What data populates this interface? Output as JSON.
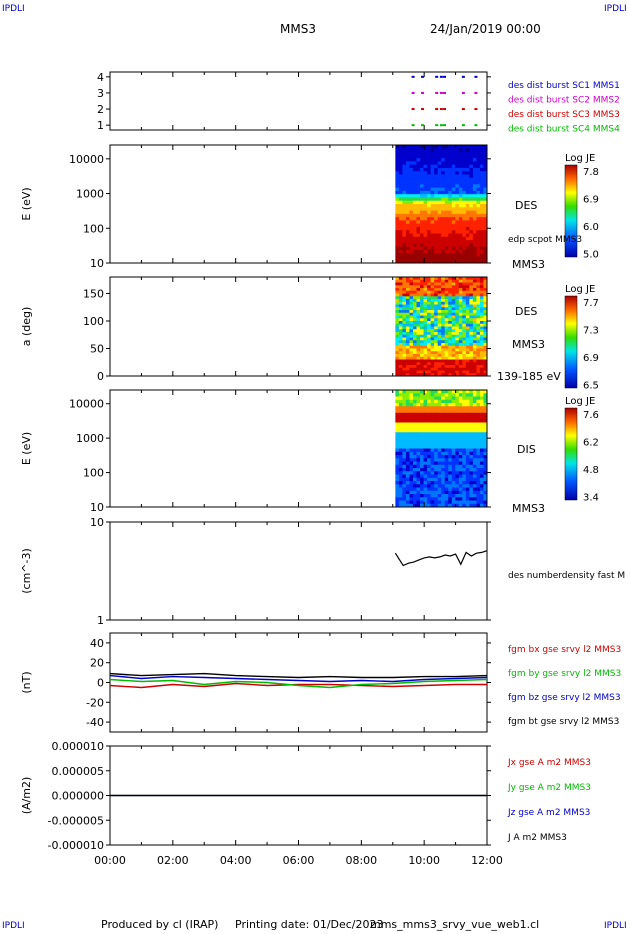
{
  "corners": {
    "tl": "IPDLI",
    "tr": "IPDLI",
    "bl": "IPDLI",
    "br": "IPDLI"
  },
  "header": {
    "spacecraft": "MMS3",
    "date": "24/Jan/2019 00:00"
  },
  "footer": {
    "produced": "Produced by cl (IRAP)",
    "printing": "Printing date: 01/Dec/2023",
    "file": "mms_mms3_srvy_vue_web1.cl"
  },
  "chart_data": [
    {
      "type": "scatter",
      "title": "",
      "ylabel": "",
      "x_range": [
        "00:00",
        "12:00"
      ],
      "ylim": [
        0.7,
        4.3
      ],
      "yticks": [
        "1",
        "2",
        "3",
        "4"
      ],
      "series": [
        {
          "name": "des dist burst SC1 MMS1",
          "color": "#0000cc",
          "y": 4
        },
        {
          "name": "des dist burst SC2 MMS2",
          "color": "#cc00cc",
          "y": 3
        },
        {
          "name": "des dist burst SC3 MMS3",
          "color": "#cc0000",
          "y": 2
        },
        {
          "name": "des dist burst SC4 MMS4",
          "color": "#00bb00",
          "y": 1
        }
      ]
    },
    {
      "type": "heatmap",
      "ylabel": "E (eV)",
      "yscale": "log",
      "yticks": [
        "10",
        "100",
        "1000",
        "10000"
      ],
      "x_range": [
        "00:00",
        "12:00"
      ],
      "data_start": "09:05",
      "right_labels": [
        "DES",
        "edp scpot MMS3",
        "MMS3"
      ],
      "colorbar": {
        "title": "Log JE",
        "ticks": [
          "7.8",
          "6.9",
          "6.0",
          "5.0"
        ]
      }
    },
    {
      "type": "heatmap",
      "ylabel": "a (deg)",
      "yticks": [
        "0",
        "50",
        "100",
        "150"
      ],
      "x_range": [
        "00:00",
        "12:00"
      ],
      "data_start": "09:05",
      "right_labels": [
        "DES",
        "MMS3",
        "139-185 eV"
      ],
      "colorbar": {
        "title": "Log JE",
        "ticks": [
          "7.7",
          "7.3",
          "6.9",
          "6.5"
        ]
      }
    },
    {
      "type": "heatmap",
      "ylabel": "E (eV)",
      "yscale": "log",
      "yticks": [
        "10",
        "100",
        "1000",
        "10000"
      ],
      "x_range": [
        "00:00",
        "12:00"
      ],
      "data_start": "09:05",
      "right_labels": [
        "DIS",
        "MMS3"
      ],
      "colorbar": {
        "title": "Log JE",
        "ticks": [
          "7.6",
          "6.2",
          "4.8",
          "3.4"
        ]
      }
    },
    {
      "type": "line",
      "ylabel": "(cm^-3)",
      "yscale": "log",
      "ylim": [
        1,
        10
      ],
      "yticks": [
        "1",
        "10"
      ],
      "series": [
        {
          "name": "des numberdensity fast M",
          "color": "#000000",
          "x": [
            "09:05",
            "09:12",
            "09:20",
            "09:30",
            "09:40",
            "09:50",
            "10:00",
            "10:10",
            "10:20",
            "10:30",
            "10:40",
            "10:50",
            "11:00",
            "11:10",
            "11:20",
            "11:30",
            "11:40",
            "11:50",
            "12:00"
          ],
          "values": [
            4.8,
            4.2,
            3.6,
            3.8,
            3.9,
            4.1,
            4.3,
            4.4,
            4.3,
            4.4,
            4.6,
            4.5,
            4.7,
            3.7,
            4.9,
            4.5,
            4.8,
            4.9,
            5.1
          ]
        }
      ]
    },
    {
      "type": "line",
      "ylabel": "(nT)",
      "ylim": [
        -50,
        50
      ],
      "yticks": [
        "-40",
        "-20",
        "0",
        "20",
        "40"
      ],
      "x": [
        "00:00",
        "01:00",
        "02:00",
        "03:00",
        "04:00",
        "05:00",
        "06:00",
        "07:00",
        "08:00",
        "09:00",
        "10:00",
        "11:00",
        "12:00"
      ],
      "series": [
        {
          "name": "fgm bx gse srvy l2 MMS3",
          "color": "#cc0000",
          "values": [
            -3,
            -5,
            -2,
            -4,
            -1,
            -3,
            -2,
            -2,
            -3,
            -4,
            -3,
            -2,
            -2
          ]
        },
        {
          "name": "fgm by gse srvy l2 MMS3",
          "color": "#00bb00",
          "values": [
            3,
            1,
            2,
            -2,
            1,
            0,
            -3,
            -5,
            -2,
            -1,
            1,
            2,
            3
          ]
        },
        {
          "name": "fgm bz gse srvy l2 MMS3",
          "color": "#0000cc",
          "values": [
            7,
            4,
            6,
            5,
            4,
            3,
            2,
            1,
            2,
            1,
            3,
            4,
            5
          ]
        },
        {
          "name": "fgm bt gse srvy l2 MMS3",
          "color": "#000000",
          "values": [
            9,
            7,
            8,
            9,
            7,
            6,
            5,
            6,
            5,
            5,
            6,
            6,
            7
          ]
        }
      ]
    },
    {
      "type": "line",
      "ylabel": "(A/m2)",
      "ylim": [
        -1e-05,
        1e-05
      ],
      "yticks": [
        "-0.000010",
        "-0.000005",
        "0.000000",
        "0.000005",
        "0.000010"
      ],
      "xticks": [
        "00:00",
        "02:00",
        "04:00",
        "06:00",
        "08:00",
        "10:00",
        "12:00"
      ],
      "series": [
        {
          "name": "Jx gse A m2 MMS3",
          "color": "#cc0000",
          "values": [
            0,
            0
          ]
        },
        {
          "name": "Jy gse A m2 MMS3",
          "color": "#00bb00",
          "values": [
            0,
            0
          ]
        },
        {
          "name": "Jz gse A m2 MMS3",
          "color": "#0000cc",
          "values": [
            0,
            0
          ]
        },
        {
          "name": "J A m2 MMS3",
          "color": "#000000",
          "values": [
            0,
            0
          ]
        }
      ]
    }
  ]
}
